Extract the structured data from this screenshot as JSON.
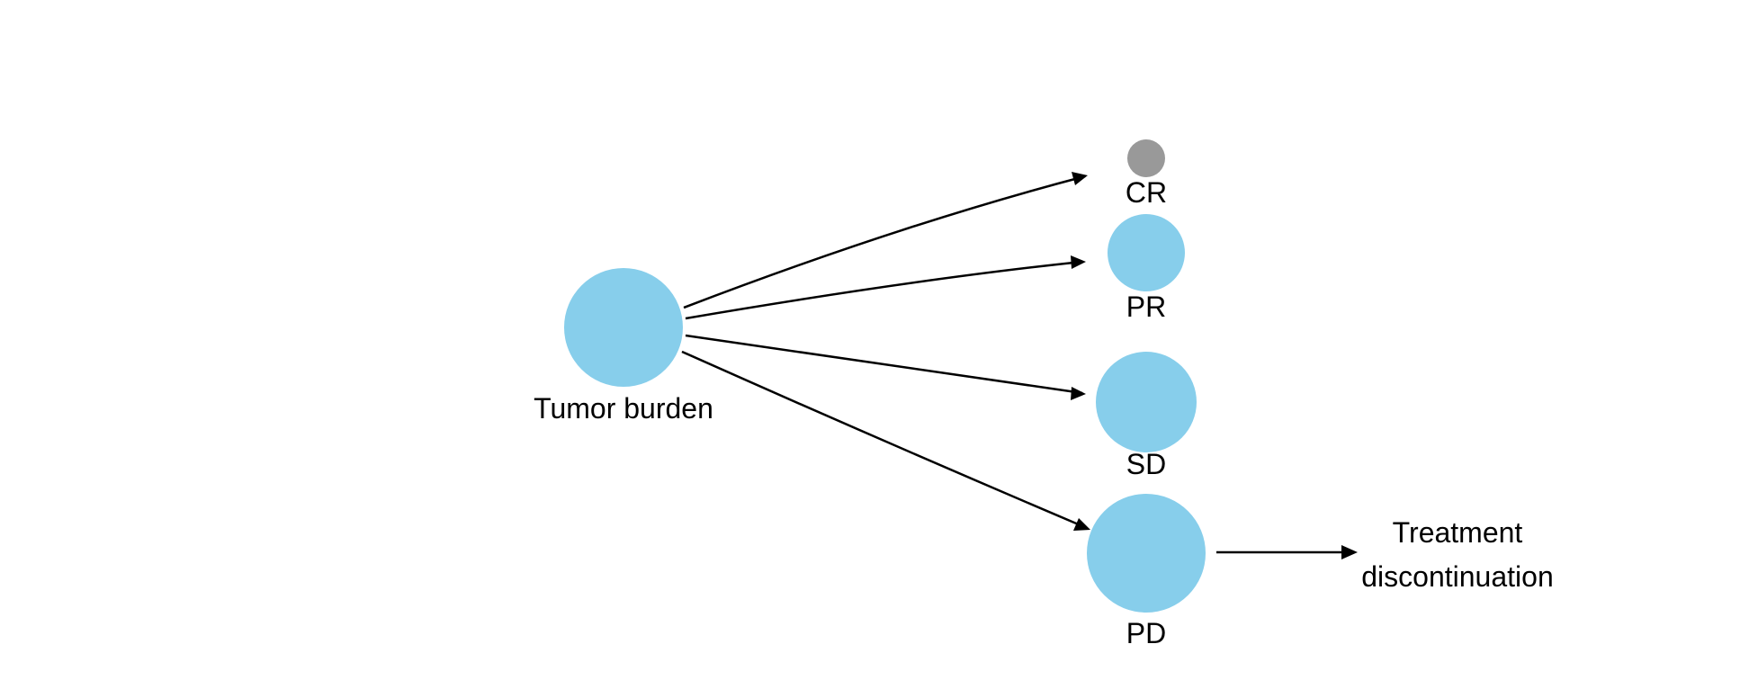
{
  "colors": {
    "node_fill": "#87CEEB",
    "cr_fill": "#999999",
    "arrow": "#000000",
    "text": "#000000",
    "background": "#ffffff"
  },
  "nodes": {
    "tumor_burden": {
      "label": "Tumor burden"
    },
    "cr": {
      "label": "CR"
    },
    "pr": {
      "label": "PR"
    },
    "sd": {
      "label": "SD"
    },
    "pd": {
      "label": "PD"
    },
    "treatment_discontinuation": {
      "label_line1": "Treatment",
      "label_line2": "discontinuation"
    }
  },
  "edges": [
    {
      "from": "Tumor burden",
      "to": "CR"
    },
    {
      "from": "Tumor burden",
      "to": "PR"
    },
    {
      "from": "Tumor burden",
      "to": "SD"
    },
    {
      "from": "Tumor burden",
      "to": "PD"
    },
    {
      "from": "PD",
      "to": "Treatment discontinuation"
    }
  ]
}
